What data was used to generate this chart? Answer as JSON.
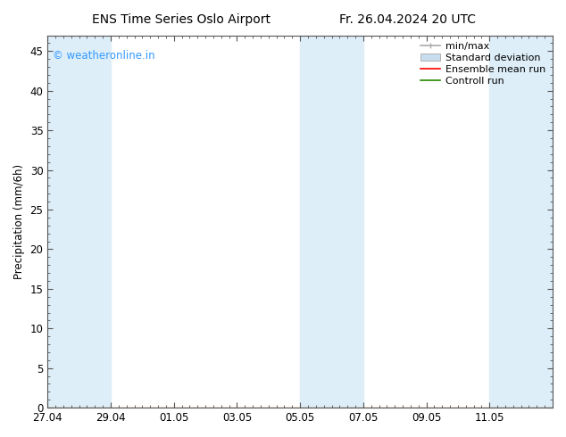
{
  "title_left": "ENS Time Series Oslo Airport",
  "title_right": "Fr. 26.04.2024 20 UTC",
  "ylabel": "Precipitation (mm/6h)",
  "watermark": "© weatheronline.in",
  "watermark_color": "#3399ff",
  "ylim": [
    0,
    47
  ],
  "yticks": [
    0,
    5,
    10,
    15,
    20,
    25,
    30,
    35,
    40,
    45
  ],
  "background_color": "#ffffff",
  "plot_bg_color": "#ffffff",
  "shade_color": "#ddeef8",
  "legend_entries": [
    "min/max",
    "Standard deviation",
    "Ensemble mean run",
    "Controll run"
  ],
  "x_min": 27.0,
  "x_max": 43.0,
  "shade_bands": [
    [
      27.0,
      27.5
    ],
    [
      28.0,
      29.5
    ],
    [
      35.0,
      36.0
    ],
    [
      36.5,
      37.0
    ],
    [
      41.0,
      43.0
    ]
  ],
  "xtick_labels": [
    "27.04",
    "29.04",
    "01.05",
    "03.05",
    "05.05",
    "07.05",
    "09.05",
    "11.05"
  ],
  "xtick_positions": [
    27.0,
    29.0,
    31.0,
    33.0,
    35.0,
    37.0,
    39.0,
    41.0
  ],
  "minor_tick_interval": 0.25,
  "title_fontsize": 10,
  "tick_fontsize": 8.5,
  "legend_fontsize": 8
}
